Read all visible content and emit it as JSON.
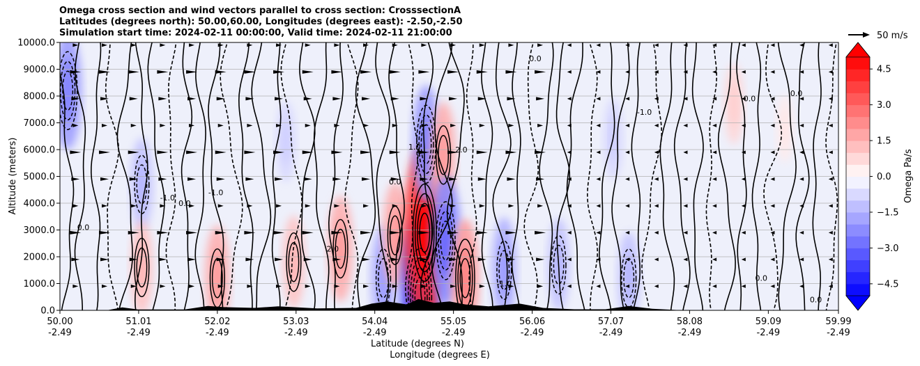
{
  "chart_data": {
    "type": "heatmap",
    "title_lines": [
      "Omega cross section and wind vectors parallel to cross section: CrosssectionA",
      "Latitudes (degrees north): 50.00,60.00, Longitudes (degrees east): -2.50,-2.50",
      "Simulation start time: 2024-02-11 00:00:00, Valid time: 2024-02-11 21:00:00"
    ],
    "ylabel": "Altitude (meters)",
    "xlabel_lines": [
      "Latitude (degrees N)",
      "Longitude (degrees E)"
    ],
    "ylim": [
      0,
      10000
    ],
    "y_ticks": [
      {
        "value": 0,
        "label": "0.0"
      },
      {
        "value": 1000,
        "label": "1000.0"
      },
      {
        "value": 2000,
        "label": "2000.0"
      },
      {
        "value": 3000,
        "label": "3000.0"
      },
      {
        "value": 4000,
        "label": "4000.0"
      },
      {
        "value": 5000,
        "label": "5000.0"
      },
      {
        "value": 6000,
        "label": "6000.0"
      },
      {
        "value": 7000,
        "label": "7000.0"
      },
      {
        "value": 8000,
        "label": "8000.0"
      },
      {
        "value": 9000,
        "label": "9000.0"
      },
      {
        "value": 10000,
        "label": "10000.0"
      }
    ],
    "xlim": [
      50.0,
      59.99
    ],
    "x_ticks": [
      {
        "value": 50.0,
        "lat": "50.00",
        "lon": "-2.49"
      },
      {
        "value": 51.01,
        "lat": "51.01",
        "lon": "-2.49"
      },
      {
        "value": 52.02,
        "lat": "52.02",
        "lon": "-2.49"
      },
      {
        "value": 53.03,
        "lat": "53.03",
        "lon": "-2.49"
      },
      {
        "value": 54.04,
        "lat": "54.04",
        "lon": "-2.49"
      },
      {
        "value": 55.05,
        "lat": "55.05",
        "lon": "-2.49"
      },
      {
        "value": 56.06,
        "lat": "56.06",
        "lon": "-2.49"
      },
      {
        "value": 57.07,
        "lat": "57.07",
        "lon": "-2.49"
      },
      {
        "value": 58.08,
        "lat": "58.08",
        "lon": "-2.49"
      },
      {
        "value": 59.09,
        "lat": "59.09",
        "lon": "-2.49"
      },
      {
        "value": 59.99,
        "lat": "59.99",
        "lon": "-2.49"
      }
    ],
    "grid": "horizontal",
    "colorbar": {
      "label": "Omega Pa/s",
      "range": [
        -5,
        5
      ],
      "extend": "both",
      "ticks": [
        {
          "value": 4.5,
          "label": "4.5"
        },
        {
          "value": 3.0,
          "label": "3.0"
        },
        {
          "value": 1.5,
          "label": "1.5"
        },
        {
          "value": 0.0,
          "label": "0.0"
        },
        {
          "value": -1.5,
          "label": "−1.5"
        },
        {
          "value": -3.0,
          "label": "−3.0"
        },
        {
          "value": -4.5,
          "label": "−4.5"
        }
      ],
      "low_color": "#0000ff",
      "high_color": "#ff0000",
      "mid_color": "#ffffff"
    },
    "quiver_key": {
      "label": "50 m/s",
      "magnitude": 50
    },
    "contour_levels": [
      -2.0,
      -1.0,
      0.0,
      1.0,
      2.0
    ],
    "omega_features": [
      {
        "lat": 50.1,
        "alt": 8200,
        "omega": -2.5
      },
      {
        "lat": 51.05,
        "alt": 4700,
        "omega": -1.5
      },
      {
        "lat": 51.05,
        "alt": 1600,
        "omega": 1.5
      },
      {
        "lat": 52.02,
        "alt": 1200,
        "omega": 2.0
      },
      {
        "lat": 52.9,
        "alt": 6300,
        "omega": -1.0
      },
      {
        "lat": 53.0,
        "alt": 1800,
        "omega": 1.5
      },
      {
        "lat": 53.6,
        "alt": 2300,
        "omega": 2.0
      },
      {
        "lat": 54.15,
        "alt": 1200,
        "omega": -2.0
      },
      {
        "lat": 54.3,
        "alt": 2800,
        "omega": 2.0
      },
      {
        "lat": 54.62,
        "alt": 500,
        "omega": -4.5
      },
      {
        "lat": 54.68,
        "alt": 2900,
        "omega": 5.0
      },
      {
        "lat": 54.7,
        "alt": 6200,
        "omega": -2.5
      },
      {
        "lat": 54.92,
        "alt": 5800,
        "omega": 2.0
      },
      {
        "lat": 54.95,
        "alt": 2600,
        "omega": -3.0
      },
      {
        "lat": 55.2,
        "alt": 1200,
        "omega": 2.5
      },
      {
        "lat": 55.7,
        "alt": 1500,
        "omega": -2.0
      },
      {
        "lat": 56.4,
        "alt": 1700,
        "omega": -1.5
      },
      {
        "lat": 57.3,
        "alt": 1200,
        "omega": -1.5
      },
      {
        "lat": 57.1,
        "alt": 6400,
        "omega": -1.0
      },
      {
        "lat": 58.65,
        "alt": 7700,
        "omega": 1.0
      },
      {
        "lat": 59.3,
        "alt": 6800,
        "omega": 0.5
      }
    ],
    "contour_labels": [
      {
        "text": "0.0",
        "lat": 54.3,
        "alt": 4700
      },
      {
        "text": "-1.0",
        "lat": 51.38,
        "alt": 4100
      },
      {
        "text": "-1.0",
        "lat": 52.0,
        "alt": 4300
      },
      {
        "text": "0.0",
        "lat": 51.6,
        "alt": 3900
      },
      {
        "text": "0.0",
        "lat": 59.0,
        "alt": 1100
      },
      {
        "text": "0.0",
        "lat": 50.3,
        "alt": 3000
      },
      {
        "text": "1.0",
        "lat": 54.55,
        "alt": 6000
      },
      {
        "text": "2.0",
        "lat": 55.15,
        "alt": 5900
      },
      {
        "text": "-1.0",
        "lat": 57.5,
        "alt": 7300
      },
      {
        "text": "0.0",
        "lat": 58.85,
        "alt": 7800
      },
      {
        "text": "0.0",
        "lat": 59.45,
        "alt": 8000
      },
      {
        "text": "0.0",
        "lat": 56.1,
        "alt": 9300
      },
      {
        "text": "-1.0",
        "lat": 55.7,
        "alt": 900
      },
      {
        "text": "2.0",
        "lat": 53.5,
        "alt": 2200
      },
      {
        "text": "0.0",
        "lat": 59.7,
        "alt": 300
      }
    ],
    "terrain": [
      {
        "lat": 50.0,
        "h": 0
      },
      {
        "lat": 50.6,
        "h": 0
      },
      {
        "lat": 50.8,
        "h": 110
      },
      {
        "lat": 51.0,
        "h": 30
      },
      {
        "lat": 51.6,
        "h": 30
      },
      {
        "lat": 51.9,
        "h": 160
      },
      {
        "lat": 52.1,
        "h": 120
      },
      {
        "lat": 52.5,
        "h": 90
      },
      {
        "lat": 52.8,
        "h": 150
      },
      {
        "lat": 53.3,
        "h": 70
      },
      {
        "lat": 53.8,
        "h": 90
      },
      {
        "lat": 54.0,
        "h": 250
      },
      {
        "lat": 54.2,
        "h": 330
      },
      {
        "lat": 54.45,
        "h": 220
      },
      {
        "lat": 54.6,
        "h": 420
      },
      {
        "lat": 54.8,
        "h": 280
      },
      {
        "lat": 55.0,
        "h": 330
      },
      {
        "lat": 55.2,
        "h": 220
      },
      {
        "lat": 55.5,
        "h": 150
      },
      {
        "lat": 55.9,
        "h": 250
      },
      {
        "lat": 56.2,
        "h": 90
      },
      {
        "lat": 56.6,
        "h": 40
      },
      {
        "lat": 57.0,
        "h": 40
      },
      {
        "lat": 57.3,
        "h": 160
      },
      {
        "lat": 57.6,
        "h": 60
      },
      {
        "lat": 58.0,
        "h": 0
      },
      {
        "lat": 59.99,
        "h": 0
      }
    ]
  }
}
